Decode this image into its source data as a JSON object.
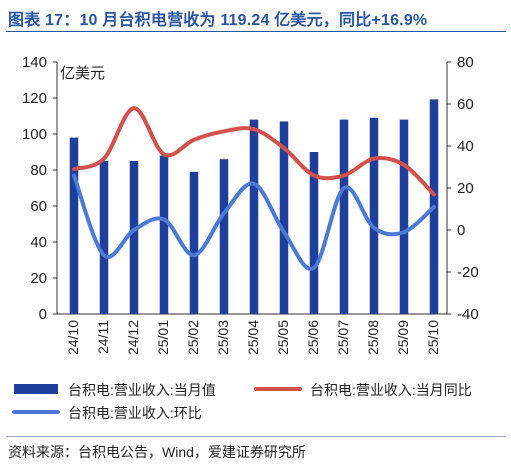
{
  "title": "图表 17：10 月台积电营收为 119.24 亿美元，同比+16.9%",
  "source": "资料来源：台积电公告，Wind，爱建证券研究所",
  "chart_data": {
    "type": "bar",
    "categories": [
      "24/10",
      "24/11",
      "24/12",
      "25/01",
      "25/02",
      "25/03",
      "25/04",
      "25/05",
      "25/06",
      "25/07",
      "25/08",
      "25/09",
      "25/10"
    ],
    "y_left": {
      "unit": "亿美元",
      "ylim": [
        0,
        140
      ],
      "ticks": [
        0,
        20,
        40,
        60,
        80,
        100,
        120,
        140
      ]
    },
    "y_right": {
      "ylim": [
        -40,
        80
      ],
      "ticks": [
        -40,
        -20,
        0,
        20,
        40,
        60,
        80
      ]
    },
    "series": [
      {
        "name": "台积电:营业收入:当月值",
        "type": "bar",
        "axis": "left",
        "color": "#1f3f9c",
        "values": [
          98,
          85,
          85,
          88,
          79,
          86,
          108,
          107,
          90,
          108,
          109,
          108,
          119.24
        ]
      },
      {
        "name": "台积电:营业收入:当月同比",
        "type": "line",
        "axis": "right",
        "color": "#d4504a",
        "values": [
          29,
          34,
          58,
          36,
          43,
          47,
          48,
          39,
          26,
          26,
          34,
          31,
          16.9
        ]
      },
      {
        "name": "台积电:营业收入:环比",
        "type": "line",
        "axis": "right",
        "color": "#4a7ad6",
        "values": [
          26,
          -12,
          0,
          5,
          -12,
          8,
          22,
          -1,
          -18,
          20,
          1,
          -1,
          11
        ]
      }
    ],
    "legend_position": "bottom",
    "grid": false
  }
}
